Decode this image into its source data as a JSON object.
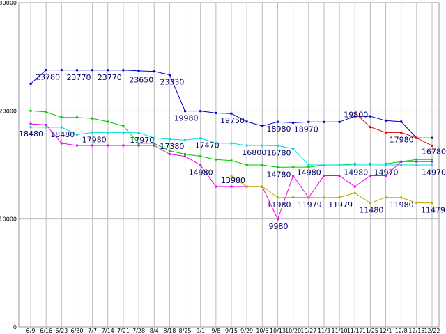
{
  "chart_data": {
    "type": "line",
    "ylim": [
      0,
      30000
    ],
    "y_ticks": [
      "0",
      "10000",
      "20000",
      "30000"
    ],
    "y_tick_values": [
      0,
      10000,
      20000,
      30000
    ],
    "grid": true,
    "categories": [
      "6/9",
      "6/16",
      "6/23",
      "6/30",
      "7/7",
      "7/14",
      "7/21",
      "7/28",
      "8/4",
      "8/18",
      "8/25",
      "9/1",
      "9/8",
      "9/15",
      "9/29",
      "10/6",
      "10/13",
      "10/20",
      "10/27",
      "11/3",
      "11/10",
      "11/17",
      "11/25",
      "12/1",
      "12/8",
      "12/15",
      "12/22"
    ],
    "x_tick_labels": [
      "6/9",
      "6/16",
      "6/23",
      "6/30",
      "7/7",
      "7/14",
      "7/21",
      "7/28",
      "8/4",
      "8/18",
      "8/25",
      "9/1",
      "9/8",
      "9/15",
      "9/29",
      "10/6",
      "10/13",
      "10/20",
      "10/27",
      "11/3",
      "11/10",
      "11/17",
      "11/25",
      "12/1",
      "12/8",
      "12/15",
      "12/22"
    ],
    "series": [
      {
        "color": "#0000cc",
        "values": [
          22500,
          23780,
          23780,
          23770,
          23770,
          23770,
          23770,
          23700,
          23650,
          23330,
          19980,
          19980,
          19800,
          19750,
          19000,
          18600,
          18980,
          18900,
          18970,
          18970,
          18970,
          19500,
          19500,
          19100,
          19000,
          17500,
          17500
        ]
      },
      {
        "color": "#dd0000",
        "values": [
          null,
          null,
          null,
          null,
          null,
          null,
          null,
          null,
          null,
          null,
          null,
          null,
          null,
          null,
          null,
          null,
          null,
          null,
          null,
          null,
          null,
          19800,
          18500,
          18000,
          18000,
          17500,
          16780
        ]
      },
      {
        "color": "#00cc00",
        "values": [
          20000,
          19900,
          19400,
          19400,
          19300,
          19000,
          18600,
          17000,
          17000,
          16300,
          16000,
          15800,
          15500,
          15400,
          15000,
          15000,
          14780,
          14800,
          14800,
          14980,
          15000,
          15100,
          15100,
          15100,
          15300,
          15500,
          15500
        ]
      },
      {
        "color": "#00dddd",
        "values": [
          18500,
          18480,
          18480,
          17800,
          18000,
          18000,
          18000,
          17970,
          17500,
          17380,
          17300,
          17470,
          17000,
          17000,
          16800,
          16800,
          16780,
          16500,
          15000,
          15000,
          15000,
          15000,
          15000,
          15000,
          15000,
          15000,
          15000
        ]
      },
      {
        "color": "#ee00ee",
        "values": [
          18800,
          18700,
          17000,
          16800,
          16800,
          16800,
          16800,
          16800,
          16800,
          16000,
          15800,
          14980,
          13000,
          13000,
          13000,
          13000,
          9980,
          14000,
          11979,
          14000,
          14000,
          13000,
          14000,
          14000,
          15300,
          15300,
          15300
        ]
      },
      {
        "color": "#bbaa00",
        "values": [
          null,
          null,
          null,
          null,
          null,
          null,
          null,
          null,
          null,
          null,
          null,
          null,
          null,
          13980,
          13000,
          13000,
          11980,
          12000,
          12000,
          11979,
          12000,
          12400,
          11480,
          12000,
          11980,
          11500,
          11479
        ]
      }
    ],
    "annotations": [
      {
        "text": "23780",
        "x": "6/16",
        "y": 23780,
        "dx": -15,
        "dy": 14
      },
      {
        "text": "23770",
        "x": "6/30",
        "y": 23770,
        "dx": -15,
        "dy": 14
      },
      {
        "text": "23770",
        "x": "7/14",
        "y": 23770,
        "dx": -15,
        "dy": 14
      },
      {
        "text": "23650",
        "x": "8/4",
        "y": 23650,
        "dx": -36,
        "dy": 16
      },
      {
        "text": "23330",
        "x": "8/18",
        "y": 23330,
        "dx": -14,
        "dy": 14
      },
      {
        "text": "19980",
        "x": "8/25",
        "y": 19980,
        "dx": -16,
        "dy": 14
      },
      {
        "text": "19750",
        "x": "9/15",
        "y": 19750,
        "dx": -16,
        "dy": 14
      },
      {
        "text": "18980",
        "x": "10/13",
        "y": 18980,
        "dx": -16,
        "dy": 14
      },
      {
        "text": "18970",
        "x": "10/27",
        "y": 18970,
        "dx": -21,
        "dy": 14
      },
      {
        "text": "19800",
        "x": "11/17",
        "y": 19800,
        "dx": -16,
        "dy": 6
      },
      {
        "text": "17980",
        "x": "12/8",
        "y": 17980,
        "dx": -17,
        "dy": 14
      },
      {
        "text": "16780",
        "x": "12/22",
        "y": 16780,
        "dx": -15,
        "dy": 12
      },
      {
        "text": "18480",
        "x": "6/9",
        "y": 18480,
        "dx": -17,
        "dy": 13
      },
      {
        "text": "18480",
        "x": "6/23",
        "y": 18480,
        "dx": -16,
        "dy": 14
      },
      {
        "text": "17980",
        "x": "7/7",
        "y": 17980,
        "dx": -15,
        "dy": 14
      },
      {
        "text": "17970",
        "x": "8/4",
        "y": 17970,
        "dx": -35,
        "dy": 14
      },
      {
        "text": "17380",
        "x": "8/18",
        "y": 17380,
        "dx": -14,
        "dy": 14
      },
      {
        "text": "17470",
        "x": "9/1",
        "y": 17470,
        "dx": -8,
        "dy": 14
      },
      {
        "text": "16800",
        "x": "10/6",
        "y": 16800,
        "dx": -29,
        "dy": 14
      },
      {
        "text": "16780",
        "x": "10/13",
        "y": 16780,
        "dx": -16,
        "dy": 14
      },
      {
        "text": "14980",
        "x": "9/1",
        "y": 14980,
        "dx": -17,
        "dy": 14
      },
      {
        "text": "13980",
        "x": "9/15",
        "y": 13980,
        "dx": -15,
        "dy": 10
      },
      {
        "text": "14780",
        "x": "10/13",
        "y": 14780,
        "dx": -16,
        "dy": 14
      },
      {
        "text": "14980",
        "x": "10/27",
        "y": 14980,
        "dx": -17,
        "dy": 14
      },
      {
        "text": "14980",
        "x": "11/17",
        "y": 14980,
        "dx": -16,
        "dy": 14
      },
      {
        "text": "14970",
        "x": "12/1",
        "y": 14970,
        "dx": -17,
        "dy": 14
      },
      {
        "text": "14970",
        "x": "12/22",
        "y": 14970,
        "dx": -15,
        "dy": 14
      },
      {
        "text": "11980",
        "x": "10/13",
        "y": 11980,
        "dx": -16,
        "dy": 14
      },
      {
        "text": "11979",
        "x": "10/27",
        "y": 11979,
        "dx": -16,
        "dy": 14
      },
      {
        "text": "11979",
        "x": "11/10",
        "y": 11979,
        "dx": -16,
        "dy": 14
      },
      {
        "text": "9980",
        "x": "10/13",
        "y": 9980,
        "dx": -13,
        "dy": 14
      },
      {
        "text": "11480",
        "x": "11/25",
        "y": 11480,
        "dx": -16,
        "dy": 14
      },
      {
        "text": "11980",
        "x": "12/8",
        "y": 11980,
        "dx": -17,
        "dy": 14
      },
      {
        "text": "11479",
        "x": "12/22",
        "y": 11479,
        "dx": -16,
        "dy": 14
      }
    ]
  }
}
